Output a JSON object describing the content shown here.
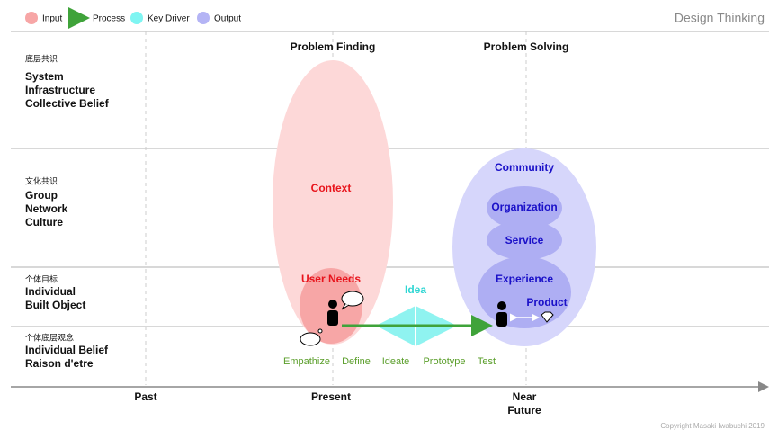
{
  "header": {
    "title": "Design Thinking"
  },
  "legend": [
    {
      "label": "Input"
    },
    {
      "label": "Process"
    },
    {
      "label": "Key Driver"
    },
    {
      "label": "Output"
    }
  ],
  "rows": [
    {
      "tag": "底层共识",
      "lines": [
        "System",
        "Infrastructure",
        "Collective Belief"
      ]
    },
    {
      "tag": "文化共识",
      "lines": [
        "Group",
        "Network",
        "Culture"
      ]
    },
    {
      "tag": "个体目标",
      "lines": [
        "Individual",
        "Built Object"
      ]
    },
    {
      "tag": "个体底层观念",
      "lines": [
        "Individual Belief",
        "Raison d'etre"
      ]
    }
  ],
  "columns": [
    "Problem Finding",
    "Problem Solving"
  ],
  "input": {
    "context": "Context",
    "user_needs": "User Needs"
  },
  "key_driver": "Idea",
  "output": {
    "community": "Community",
    "organization": "Organization",
    "service": "Service",
    "experience": "Experience",
    "product": "Product"
  },
  "process_steps": [
    "Empathize",
    "Define",
    "Ideate",
    "Prototype",
    "Test"
  ],
  "timeline": {
    "past": "Past",
    "present": "Present",
    "future": [
      "Near",
      "Future"
    ]
  },
  "footer": {
    "copyright": "Copyright Masaki Iwabuchi 2019"
  }
}
